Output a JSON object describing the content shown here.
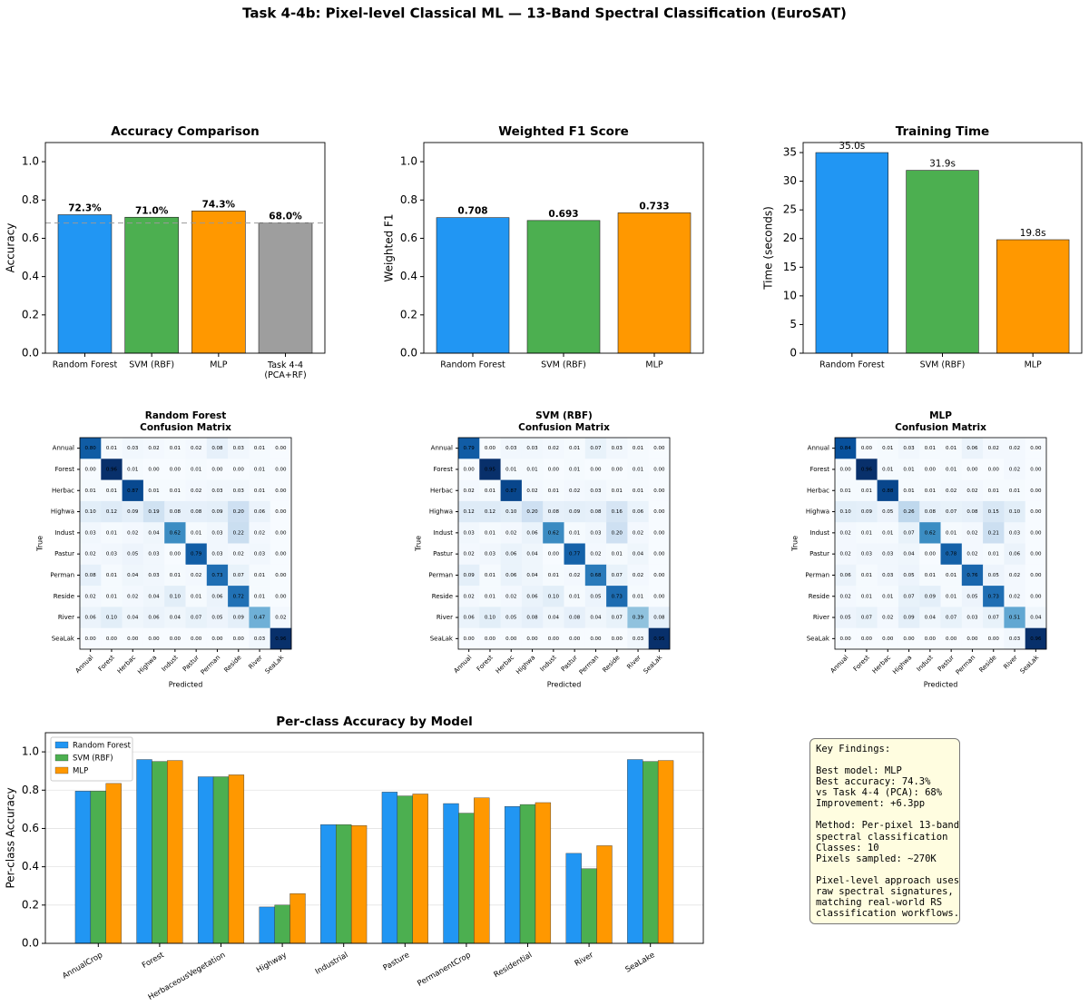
{
  "title": "Task 4-4b: Pixel-level Classical ML — 13-Band Spectral Classification (EuroSAT)",
  "chart_data": [
    {
      "type": "bar",
      "title": "Accuracy Comparison",
      "ylabel": "Accuracy",
      "categories": [
        "Random Forest",
        "SVM (RBF)",
        "MLP",
        "Task 4-4\n(PCA+RF)"
      ],
      "values": [
        0.723,
        0.71,
        0.743,
        0.68
      ],
      "value_labels": [
        "72.3%",
        "71.0%",
        "74.3%",
        "68.0%"
      ],
      "colors": [
        "#2196f3",
        "#4caf50",
        "#ff9800",
        "#9e9e9e"
      ],
      "hline": 0.68,
      "ylim": [
        0,
        1.1
      ],
      "yticks": [
        {
          "value": 0,
          "label": "0.0"
        },
        0.2,
        0.4,
        0.6,
        0.8,
        {
          "value": 1,
          "label": "1.0"
        }
      ]
    },
    {
      "type": "bar",
      "title": "Weighted F1 Score",
      "ylabel": "Weighted F1",
      "categories": [
        "Random Forest",
        "SVM (RBF)",
        "MLP"
      ],
      "values": [
        0.708,
        0.693,
        0.733
      ],
      "colors": [
        "#2196f3",
        "#4caf50",
        "#ff9800"
      ],
      "ylim": [
        0,
        1.1
      ],
      "yticks": [
        {
          "value": 0,
          "label": "0.0"
        },
        0.2,
        0.4,
        0.6,
        0.8,
        {
          "value": 1,
          "label": "1.0"
        }
      ]
    },
    {
      "type": "bar",
      "title": "Training Time",
      "ylabel": "Time (seconds)",
      "categories": [
        "Random Forest",
        "SVM (RBF)",
        "MLP"
      ],
      "values": [
        35.0,
        31.9,
        19.8
      ],
      "value_labels": [
        "35.0s",
        "31.9s",
        "19.8s"
      ],
      "colors": [
        "#2196f3",
        "#4caf50",
        "#ff9800"
      ],
      "ylim": [
        0,
        36.75
      ],
      "yticks": [
        0,
        5,
        10,
        15,
        20,
        25,
        30,
        35
      ]
    },
    {
      "type": "heatmap",
      "title": "Random Forest",
      "subtitle": "Confusion Matrix",
      "xlabel": "Predicted",
      "ylabel": "True",
      "categories": [
        "Annual",
        "Forest",
        "Herbac",
        "Highwa",
        "Indust",
        "Pastur",
        "Perman",
        "Reside",
        "River",
        "SeaLak"
      ],
      "values": [
        [
          0.8,
          0.01,
          0.03,
          0.02,
          0.01,
          0.02,
          0.08,
          0.03,
          0.01,
          0.0
        ],
        [
          0.0,
          0.96,
          0.01,
          0.0,
          0.0,
          0.01,
          0.0,
          0.0,
          0.01,
          0.0
        ],
        [
          0.01,
          0.01,
          0.87,
          0.01,
          0.01,
          0.02,
          0.03,
          0.03,
          0.01,
          0.0
        ],
        [
          0.1,
          0.12,
          0.09,
          0.19,
          0.08,
          0.08,
          0.09,
          0.2,
          0.06,
          0.0
        ],
        [
          0.03,
          0.01,
          0.02,
          0.04,
          0.62,
          0.01,
          0.03,
          0.22,
          0.02,
          0.0
        ],
        [
          0.02,
          0.03,
          0.05,
          0.03,
          0.0,
          0.79,
          0.03,
          0.02,
          0.03,
          0.0
        ],
        [
          0.08,
          0.01,
          0.04,
          0.03,
          0.01,
          0.02,
          0.73,
          0.07,
          0.01,
          0.0
        ],
        [
          0.02,
          0.01,
          0.02,
          0.04,
          0.1,
          0.01,
          0.06,
          0.72,
          0.01,
          0.0
        ],
        [
          0.06,
          0.1,
          0.04,
          0.06,
          0.04,
          0.07,
          0.05,
          0.09,
          0.47,
          0.02
        ],
        [
          0.0,
          0.0,
          0.0,
          0.0,
          0.0,
          0.0,
          0.0,
          0.0,
          0.03,
          0.96
        ]
      ],
      "value_labels": [
        [
          "0.80",
          "0.01",
          "0.03",
          "0.02",
          "0.01",
          "0.02",
          "0.08",
          "0.03",
          "0.01",
          "0.00"
        ],
        [
          "0.00",
          "0.96",
          "0.01",
          "0.00",
          "0.00",
          "0.01",
          "0.00",
          "0.00",
          "0.01",
          "0.00"
        ],
        [
          "0.01",
          "0.01",
          "0.87",
          "0.01",
          "0.01",
          "0.02",
          "0.03",
          "0.03",
          "0.01",
          "0.00"
        ],
        [
          "0.10",
          "0.12",
          "0.09",
          "0.19",
          "0.08",
          "0.08",
          "0.09",
          "0.20",
          "0.06",
          "0.00"
        ],
        [
          "0.03",
          "0.01",
          "0.02",
          "0.04",
          "0.62",
          "0.01",
          "0.03",
          "0.22",
          "0.02",
          "0.00"
        ],
        [
          "0.02",
          "0.03",
          "0.05",
          "0.03",
          "0.00",
          "0.79",
          "0.03",
          "0.02",
          "0.03",
          "0.00"
        ],
        [
          "0.08",
          "0.01",
          "0.04",
          "0.03",
          "0.01",
          "0.02",
          "0.73",
          "0.07",
          "0.01",
          "0.00"
        ],
        [
          "0.02",
          "0.01",
          "0.02",
          "0.04",
          "0.10",
          "0.01",
          "0.06",
          "0.72",
          "0.01",
          "0.00"
        ],
        [
          "0.06",
          "0.10",
          "0.04",
          "0.06",
          "0.04",
          "0.07",
          "0.05",
          "0.09",
          "0.47",
          "0.02"
        ],
        [
          "0.00",
          "0.00",
          "0.00",
          "0.00",
          "0.00",
          "0.00",
          "0.00",
          "0.00",
          "0.03",
          "0.96"
        ]
      ]
    },
    {
      "type": "heatmap",
      "title": "SVM (RBF)",
      "subtitle": "Confusion Matrix",
      "xlabel": "Predicted",
      "ylabel": "True",
      "categories": [
        "Annual",
        "Forest",
        "Herbac",
        "Highwa",
        "Indust",
        "Pastur",
        "Perman",
        "Reside",
        "River",
        "SeaLak"
      ],
      "values": [
        [
          0.79,
          0.0,
          0.03,
          0.03,
          0.02,
          0.01,
          0.07,
          0.03,
          0.01,
          0.0
        ],
        [
          0.0,
          0.95,
          0.01,
          0.01,
          0.0,
          0.01,
          0.0,
          0.0,
          0.01,
          0.0
        ],
        [
          0.02,
          0.01,
          0.87,
          0.02,
          0.01,
          0.02,
          0.03,
          0.01,
          0.01,
          0.0
        ],
        [
          0.12,
          0.12,
          0.1,
          0.2,
          0.08,
          0.09,
          0.08,
          0.16,
          0.06,
          0.0
        ],
        [
          0.03,
          0.01,
          0.02,
          0.06,
          0.62,
          0.01,
          0.03,
          0.2,
          0.02,
          0.0
        ],
        [
          0.02,
          0.03,
          0.06,
          0.04,
          0.0,
          0.77,
          0.02,
          0.01,
          0.04,
          0.0
        ],
        [
          0.09,
          0.01,
          0.06,
          0.04,
          0.01,
          0.02,
          0.68,
          0.07,
          0.02,
          0.0
        ],
        [
          0.02,
          0.01,
          0.02,
          0.06,
          0.1,
          0.01,
          0.05,
          0.73,
          0.01,
          0.0
        ],
        [
          0.06,
          0.1,
          0.05,
          0.08,
          0.04,
          0.08,
          0.04,
          0.07,
          0.39,
          0.08
        ],
        [
          0.0,
          0.0,
          0.0,
          0.0,
          0.0,
          0.0,
          0.0,
          0.0,
          0.03,
          0.95
        ]
      ],
      "value_labels": [
        [
          "0.79",
          "0.00",
          "0.03",
          "0.03",
          "0.02",
          "0.01",
          "0.07",
          "0.03",
          "0.01",
          "0.00"
        ],
        [
          "0.00",
          "0.95",
          "0.01",
          "0.01",
          "0.00",
          "0.01",
          "0.00",
          "0.00",
          "0.01",
          "0.00"
        ],
        [
          "0.02",
          "0.01",
          "0.87",
          "0.02",
          "0.01",
          "0.02",
          "0.03",
          "0.01",
          "0.01",
          "0.00"
        ],
        [
          "0.12",
          "0.12",
          "0.10",
          "0.20",
          "0.08",
          "0.09",
          "0.08",
          "0.16",
          "0.06",
          "0.00"
        ],
        [
          "0.03",
          "0.01",
          "0.02",
          "0.06",
          "0.62",
          "0.01",
          "0.03",
          "0.20",
          "0.02",
          "0.00"
        ],
        [
          "0.02",
          "0.03",
          "0.06",
          "0.04",
          "0.00",
          "0.77",
          "0.02",
          "0.01",
          "0.04",
          "0.00"
        ],
        [
          "0.09",
          "0.01",
          "0.06",
          "0.04",
          "0.01",
          "0.02",
          "0.68",
          "0.07",
          "0.02",
          "0.00"
        ],
        [
          "0.02",
          "0.01",
          "0.02",
          "0.06",
          "0.10",
          "0.01",
          "0.05",
          "0.73",
          "0.01",
          "0.00"
        ],
        [
          "0.06",
          "0.10",
          "0.05",
          "0.08",
          "0.04",
          "0.08",
          "0.04",
          "0.07",
          "0.39",
          "0.08"
        ],
        [
          "0.00",
          "0.00",
          "0.00",
          "0.00",
          "0.00",
          "0.00",
          "0.00",
          "0.00",
          "0.03",
          "0.95"
        ]
      ]
    },
    {
      "type": "heatmap",
      "title": "MLP",
      "subtitle": "Confusion Matrix",
      "xlabel": "Predicted",
      "ylabel": "True",
      "categories": [
        "Annual",
        "Forest",
        "Herbac",
        "Highwa",
        "Indust",
        "Pastur",
        "Perman",
        "Reside",
        "River",
        "SeaLak"
      ],
      "values": [
        [
          0.84,
          0.0,
          0.01,
          0.03,
          0.01,
          0.01,
          0.06,
          0.02,
          0.02,
          0.0
        ],
        [
          0.0,
          0.96,
          0.01,
          0.01,
          0.0,
          0.01,
          0.0,
          0.0,
          0.02,
          0.0
        ],
        [
          0.01,
          0.01,
          0.88,
          0.01,
          0.01,
          0.02,
          0.02,
          0.01,
          0.01,
          0.0
        ],
        [
          0.1,
          0.09,
          0.05,
          0.26,
          0.08,
          0.07,
          0.08,
          0.15,
          0.1,
          0.0
        ],
        [
          0.02,
          0.01,
          0.01,
          0.07,
          0.62,
          0.01,
          0.02,
          0.21,
          0.03,
          0.0
        ],
        [
          0.02,
          0.03,
          0.03,
          0.04,
          0.0,
          0.78,
          0.02,
          0.01,
          0.06,
          0.0
        ],
        [
          0.06,
          0.01,
          0.03,
          0.05,
          0.01,
          0.01,
          0.76,
          0.05,
          0.02,
          0.0
        ],
        [
          0.02,
          0.01,
          0.01,
          0.07,
          0.09,
          0.01,
          0.05,
          0.73,
          0.02,
          0.0
        ],
        [
          0.05,
          0.07,
          0.02,
          0.09,
          0.04,
          0.07,
          0.03,
          0.07,
          0.51,
          0.04
        ],
        [
          0.0,
          0.0,
          0.0,
          0.0,
          0.0,
          0.0,
          0.0,
          0.0,
          0.03,
          0.96
        ]
      ],
      "value_labels": [
        [
          "0.84",
          "0.00",
          "0.01",
          "0.03",
          "0.01",
          "0.01",
          "0.06",
          "0.02",
          "0.02",
          "0.00"
        ],
        [
          "0.00",
          "0.96",
          "0.01",
          "0.01",
          "0.00",
          "0.01",
          "0.00",
          "0.00",
          "0.02",
          "0.00"
        ],
        [
          "0.01",
          "0.01",
          "0.88",
          "0.01",
          "0.01",
          "0.02",
          "0.02",
          "0.01",
          "0.01",
          "0.00"
        ],
        [
          "0.10",
          "0.09",
          "0.05",
          "0.26",
          "0.08",
          "0.07",
          "0.08",
          "0.15",
          "0.10",
          "0.00"
        ],
        [
          "0.02",
          "0.01",
          "0.01",
          "0.07",
          "0.62",
          "0.01",
          "0.02",
          "0.21",
          "0.03",
          "0.00"
        ],
        [
          "0.02",
          "0.03",
          "0.03",
          "0.04",
          "0.00",
          "0.78",
          "0.02",
          "0.01",
          "0.06",
          "0.00"
        ],
        [
          "0.06",
          "0.01",
          "0.03",
          "0.05",
          "0.01",
          "0.01",
          "0.76",
          "0.05",
          "0.02",
          "0.00"
        ],
        [
          "0.02",
          "0.01",
          "0.01",
          "0.07",
          "0.09",
          "0.01",
          "0.05",
          "0.73",
          "0.02",
          "0.00"
        ],
        [
          "0.05",
          "0.07",
          "0.02",
          "0.09",
          "0.04",
          "0.07",
          "0.03",
          "0.07",
          "0.51",
          "0.04"
        ],
        [
          "0.00",
          "0.00",
          "0.00",
          "0.00",
          "0.00",
          "0.00",
          "0.00",
          "0.00",
          "0.03",
          "0.96"
        ]
      ]
    },
    {
      "type": "bar",
      "title": "Per-class Accuracy by Model",
      "ylabel": "Per-class Accuracy",
      "categories": [
        "AnnualCrop",
        "Forest",
        "HerbaceousVegetation",
        "Highway",
        "Industrial",
        "Pasture",
        "PermanentCrop",
        "Residential",
        "River",
        "SeaLake"
      ],
      "series": [
        {
          "name": "Random Forest",
          "color": "#2196f3",
          "values": [
            0.795,
            0.96,
            0.87,
            0.19,
            0.62,
            0.79,
            0.73,
            0.715,
            0.47,
            0.96
          ]
        },
        {
          "name": "SVM (RBF)",
          "color": "#4caf50",
          "values": [
            0.795,
            0.95,
            0.87,
            0.2,
            0.62,
            0.77,
            0.68,
            0.725,
            0.39,
            0.95
          ]
        },
        {
          "name": "MLP",
          "color": "#ff9800",
          "values": [
            0.835,
            0.955,
            0.88,
            0.26,
            0.615,
            0.78,
            0.76,
            0.735,
            0.51,
            0.955
          ]
        }
      ],
      "ylim": [
        0,
        1.1
      ],
      "yticks": [
        {
          "value": 0,
          "label": "0.0"
        },
        0.2,
        0.4,
        0.6,
        0.8,
        {
          "value": 1,
          "label": "1.0"
        }
      ],
      "grid": true,
      "legend": "upper left"
    }
  ],
  "key_findings": [
    [
      "Key Findings:"
    ],
    [
      "Best model: MLP",
      "Best accuracy: 74.3%",
      "vs Task 4-4 (PCA): 68%",
      "Improvement: +6.3pp"
    ],
    [
      "Method: Per-pixel 13-band",
      "spectral classification",
      "Classes: 10",
      "Pixels sampled: ~270K"
    ],
    [
      "Pixel-level approach uses",
      "raw spectral signatures,",
      "matching real-world RS",
      "classification workflows."
    ]
  ]
}
